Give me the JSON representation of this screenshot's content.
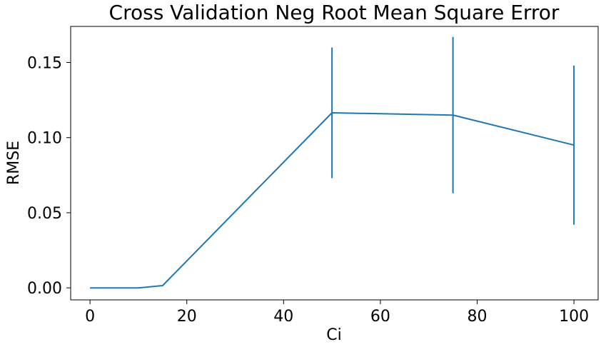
{
  "chart_data": {
    "type": "line",
    "title": "Cross Validation Neg Root Mean Square Error",
    "xlabel": "Ci",
    "ylabel": "RMSE",
    "x": [
      0,
      10,
      15,
      50,
      75,
      100
    ],
    "series": [
      {
        "values": [
          0.0,
          0.0,
          0.0015,
          0.1165,
          0.115,
          0.095
        ],
        "error": [
          0.0,
          0.0,
          0.0,
          0.0435,
          0.052,
          0.053
        ],
        "color": "#1f77b4"
      }
    ],
    "xlim": [
      -4,
      105
    ],
    "ylim": [
      -0.008,
      0.174
    ],
    "xticks": [
      0,
      20,
      40,
      60,
      80,
      100
    ],
    "yticks": [
      0.0,
      0.05,
      0.1,
      0.15
    ],
    "xtick_labels": [
      "0",
      "20",
      "40",
      "60",
      "80",
      "100"
    ],
    "ytick_labels": [
      "0.00",
      "0.05",
      "0.10",
      "0.15"
    ],
    "grid": false
  }
}
